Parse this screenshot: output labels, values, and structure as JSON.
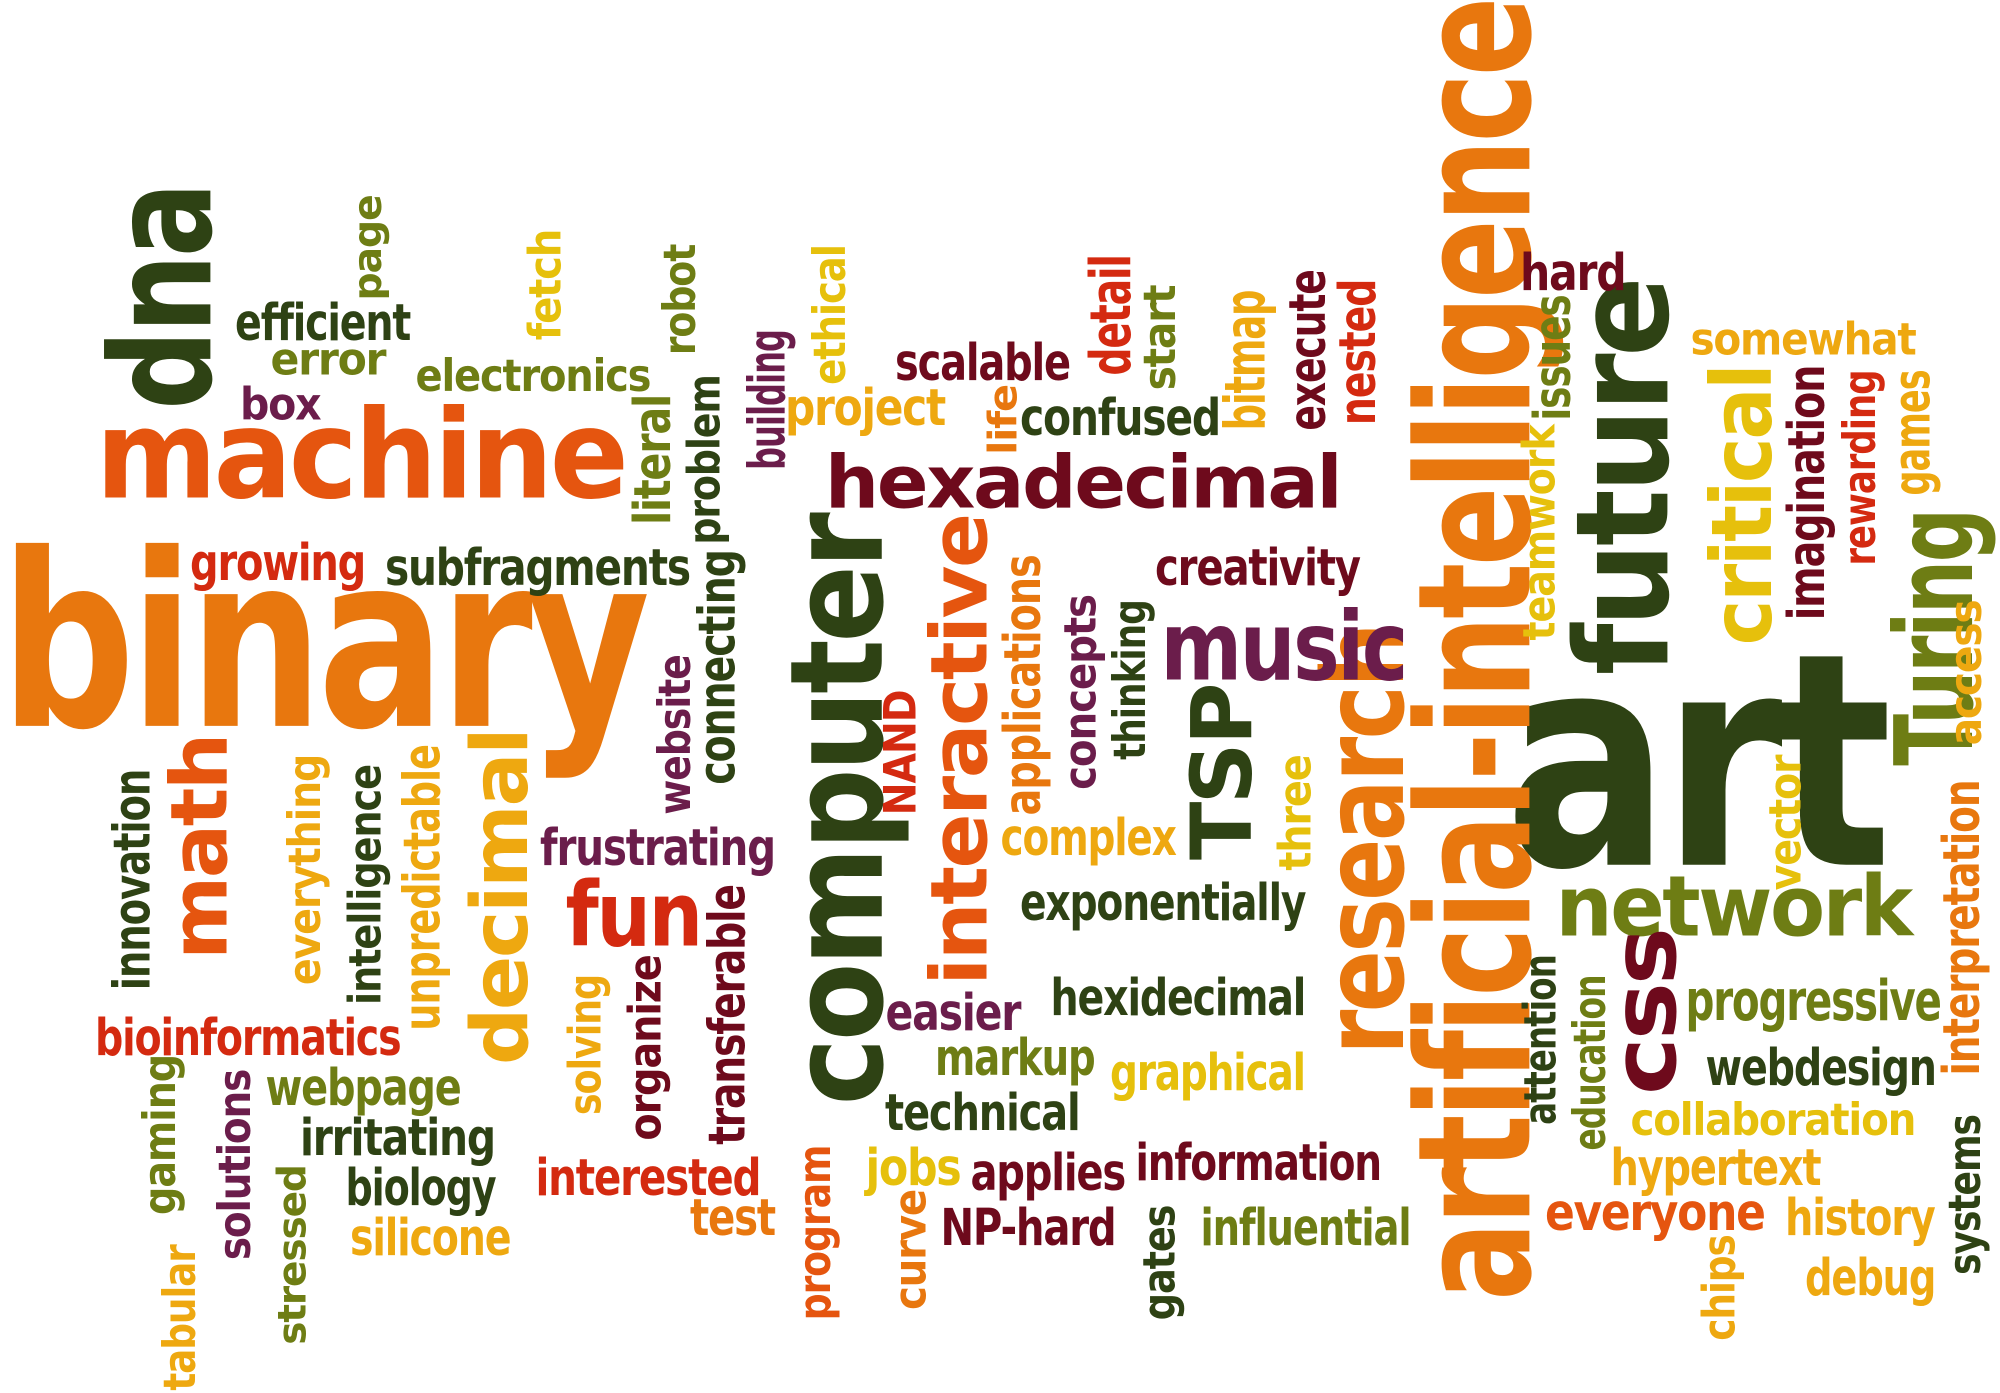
{
  "palette": {
    "orange": "#e8770e",
    "dark_orange": "#e5550f",
    "red": "#d42a10",
    "maroon": "#6e0a1c",
    "plum": "#6b1d4b",
    "dark_green": "#2e4214",
    "olive": "#6e7d14",
    "yellow": "#e6c00c",
    "gold": "#eea810"
  },
  "words": [
    {
      "text": "binary",
      "color": "orange"
    },
    {
      "text": "art",
      "color": "dark_green"
    },
    {
      "text": "artificial-intelligence",
      "color": "orange"
    },
    {
      "text": "machine",
      "color": "dark_orange"
    },
    {
      "text": "computer",
      "color": "dark_green"
    },
    {
      "text": "future",
      "color": "dark_green"
    },
    {
      "text": "hexadecimal",
      "color": "maroon"
    },
    {
      "text": "dna",
      "color": "dark_green"
    },
    {
      "text": "research",
      "color": "orange"
    },
    {
      "text": "network",
      "color": "olive"
    },
    {
      "text": "interactive",
      "color": "dark_orange"
    },
    {
      "text": "decimal",
      "color": "gold"
    },
    {
      "text": "math",
      "color": "dark_orange"
    },
    {
      "text": "music",
      "color": "plum"
    },
    {
      "text": "critical",
      "color": "yellow"
    },
    {
      "text": "Turing",
      "color": "olive"
    },
    {
      "text": "TSP",
      "color": "dark_green"
    },
    {
      "text": "fun",
      "color": "red"
    },
    {
      "text": "css",
      "color": "maroon"
    },
    {
      "text": "efficient",
      "color": "dark_green"
    },
    {
      "text": "error",
      "color": "olive"
    },
    {
      "text": "box",
      "color": "plum"
    },
    {
      "text": "electronics",
      "color": "olive"
    },
    {
      "text": "page",
      "color": "olive"
    },
    {
      "text": "fetch",
      "color": "yellow"
    },
    {
      "text": "robot",
      "color": "olive"
    },
    {
      "text": "literal",
      "color": "olive"
    },
    {
      "text": "problem",
      "color": "dark_green"
    },
    {
      "text": "building",
      "color": "plum"
    },
    {
      "text": "ethical",
      "color": "yellow"
    },
    {
      "text": "project",
      "color": "gold"
    },
    {
      "text": "scalable",
      "color": "maroon"
    },
    {
      "text": "life",
      "color": "orange"
    },
    {
      "text": "confused",
      "color": "dark_green"
    },
    {
      "text": "detail",
      "color": "red"
    },
    {
      "text": "start",
      "color": "olive"
    },
    {
      "text": "bitmap",
      "color": "gold"
    },
    {
      "text": "execute",
      "color": "maroon"
    },
    {
      "text": "nested",
      "color": "red"
    },
    {
      "text": "hard",
      "color": "maroon"
    },
    {
      "text": "issues",
      "color": "olive"
    },
    {
      "text": "somewhat",
      "color": "gold"
    },
    {
      "text": "imagination",
      "color": "maroon"
    },
    {
      "text": "rewarding",
      "color": "red"
    },
    {
      "text": "games",
      "color": "gold"
    },
    {
      "text": "teamwork",
      "color": "yellow"
    },
    {
      "text": "access",
      "color": "gold"
    },
    {
      "text": "growing",
      "color": "red"
    },
    {
      "text": "subfragments",
      "color": "dark_green"
    },
    {
      "text": "creativity",
      "color": "maroon"
    },
    {
      "text": "connecting",
      "color": "dark_green"
    },
    {
      "text": "website",
      "color": "plum"
    },
    {
      "text": "applications",
      "color": "orange"
    },
    {
      "text": "concepts",
      "color": "plum"
    },
    {
      "text": "thinking",
      "color": "dark_green"
    },
    {
      "text": "NAND",
      "color": "red"
    },
    {
      "text": "innovation",
      "color": "dark_green"
    },
    {
      "text": "everything",
      "color": "gold"
    },
    {
      "text": "intelligence",
      "color": "dark_green"
    },
    {
      "text": "unpredictable",
      "color": "gold"
    },
    {
      "text": "frustrating",
      "color": "plum"
    },
    {
      "text": "complex",
      "color": "gold"
    },
    {
      "text": "three",
      "color": "yellow"
    },
    {
      "text": "vector",
      "color": "yellow"
    },
    {
      "text": "interpretation",
      "color": "orange"
    },
    {
      "text": "exponentially",
      "color": "dark_green"
    },
    {
      "text": "attention",
      "color": "dark_green"
    },
    {
      "text": "education",
      "color": "olive"
    },
    {
      "text": "progressive",
      "color": "olive"
    },
    {
      "text": "webdesign",
      "color": "dark_green"
    },
    {
      "text": "bioinformatics",
      "color": "red"
    },
    {
      "text": "easier",
      "color": "plum"
    },
    {
      "text": "hexidecimal",
      "color": "dark_green"
    },
    {
      "text": "markup",
      "color": "olive"
    },
    {
      "text": "graphical",
      "color": "yellow"
    },
    {
      "text": "transferable",
      "color": "maroon"
    },
    {
      "text": "organize",
      "color": "maroon"
    },
    {
      "text": "solving",
      "color": "gold"
    },
    {
      "text": "gaming",
      "color": "olive"
    },
    {
      "text": "solutions",
      "color": "plum"
    },
    {
      "text": "webpage",
      "color": "olive"
    },
    {
      "text": "irritating",
      "color": "dark_green"
    },
    {
      "text": "biology",
      "color": "dark_green"
    },
    {
      "text": "silicone",
      "color": "gold"
    },
    {
      "text": "stressed",
      "color": "olive"
    },
    {
      "text": "tabular",
      "color": "gold"
    },
    {
      "text": "technical",
      "color": "dark_green"
    },
    {
      "text": "collaboration",
      "color": "yellow"
    },
    {
      "text": "hypertext",
      "color": "gold"
    },
    {
      "text": "interested",
      "color": "red"
    },
    {
      "text": "test",
      "color": "orange"
    },
    {
      "text": "program",
      "color": "dark_orange"
    },
    {
      "text": "jobs",
      "color": "yellow"
    },
    {
      "text": "applies",
      "color": "maroon"
    },
    {
      "text": "information",
      "color": "maroon"
    },
    {
      "text": "curve",
      "color": "orange"
    },
    {
      "text": "NP-hard",
      "color": "maroon"
    },
    {
      "text": "gates",
      "color": "dark_green"
    },
    {
      "text": "influential",
      "color": "olive"
    },
    {
      "text": "everyone",
      "color": "dark_orange"
    },
    {
      "text": "history",
      "color": "gold"
    },
    {
      "text": "chips",
      "color": "gold"
    },
    {
      "text": "debug",
      "color": "gold"
    },
    {
      "text": "systems",
      "color": "dark_green"
    }
  ]
}
